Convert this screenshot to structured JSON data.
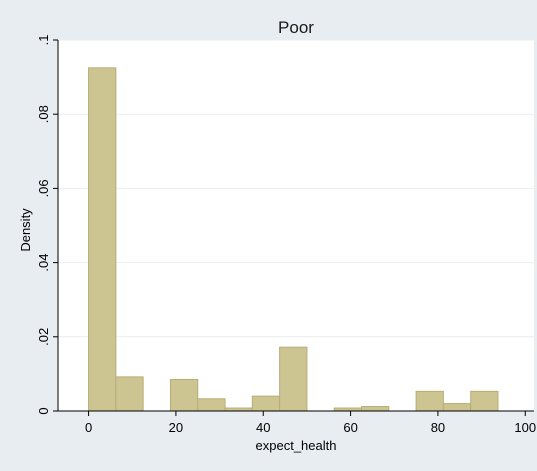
{
  "chart_data": {
    "type": "bar",
    "title": "Poor",
    "xlabel": "expect_health",
    "ylabel": "Density",
    "xlim": [
      -7,
      102
    ],
    "ylim": [
      0,
      0.1
    ],
    "grid": true,
    "bar_color": "#cdc591",
    "bar_edge_color": "#b7ad78",
    "plot_background": "#ffffff",
    "outer_background": "#e8edf1",
    "gridline_color": "#e9eef2",
    "x_ticks": [
      0,
      20,
      40,
      60,
      80,
      100
    ],
    "x_tick_labels": [
      "0",
      "20",
      "40",
      "60",
      "80",
      "100"
    ],
    "y_ticks": [
      0,
      0.02,
      0.04,
      0.06,
      0.08,
      0.1
    ],
    "y_tick_labels": [
      "0",
      ".02",
      ".04",
      ".06",
      ".08",
      ".1"
    ],
    "bins": [
      {
        "x0": 0,
        "x1": 6.25,
        "value": 0.0925
      },
      {
        "x0": 6.25,
        "x1": 12.5,
        "value": 0.0092
      },
      {
        "x0": 12.5,
        "x1": 18.75,
        "value": 0
      },
      {
        "x0": 18.75,
        "x1": 25,
        "value": 0.0085
      },
      {
        "x0": 25,
        "x1": 31.25,
        "value": 0.0033
      },
      {
        "x0": 31.25,
        "x1": 37.5,
        "value": 0.0008
      },
      {
        "x0": 37.5,
        "x1": 43.75,
        "value": 0.004
      },
      {
        "x0": 43.75,
        "x1": 50,
        "value": 0.0172
      },
      {
        "x0": 50,
        "x1": 56.25,
        "value": 0
      },
      {
        "x0": 56.25,
        "x1": 62.5,
        "value": 0.0008
      },
      {
        "x0": 62.5,
        "x1": 68.75,
        "value": 0.0012
      },
      {
        "x0": 68.75,
        "x1": 75,
        "value": 0
      },
      {
        "x0": 75,
        "x1": 81.25,
        "value": 0.0053
      },
      {
        "x0": 81.25,
        "x1": 87.5,
        "value": 0.002
      },
      {
        "x0": 87.5,
        "x1": 93.75,
        "value": 0.0053
      }
    ]
  }
}
